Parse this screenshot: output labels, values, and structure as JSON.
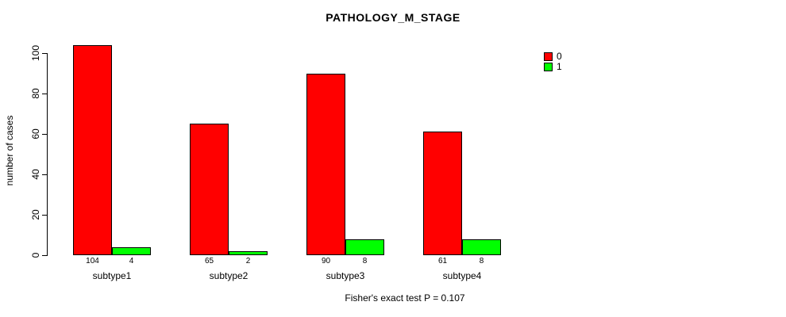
{
  "chart_data": {
    "type": "bar",
    "title": "PATHOLOGY_M_STAGE",
    "xlabel": "",
    "ylabel": "number of cases",
    "categories": [
      "subtype1",
      "subtype2",
      "subtype3",
      "subtype4"
    ],
    "series": [
      {
        "name": "0",
        "color": "#FF0000",
        "values": [
          104,
          65,
          90,
          61
        ]
      },
      {
        "name": "1",
        "color": "#00FF00",
        "values": [
          4,
          2,
          8,
          8
        ]
      }
    ],
    "bar_value_labels": [
      [
        "104",
        "4"
      ],
      [
        "65",
        "2"
      ],
      [
        "90",
        "8"
      ],
      [
        "61",
        "8"
      ]
    ],
    "ylim": [
      0,
      100
    ],
    "yticks": [
      0,
      20,
      40,
      60,
      80,
      100
    ],
    "grid": false,
    "legend_position": "top-right",
    "legend_entries": [
      "0",
      "1"
    ],
    "footnote": "Fisher's exact test P = 0.107",
    "axis_color": "#000000",
    "background_color": "#FFFFFF"
  }
}
